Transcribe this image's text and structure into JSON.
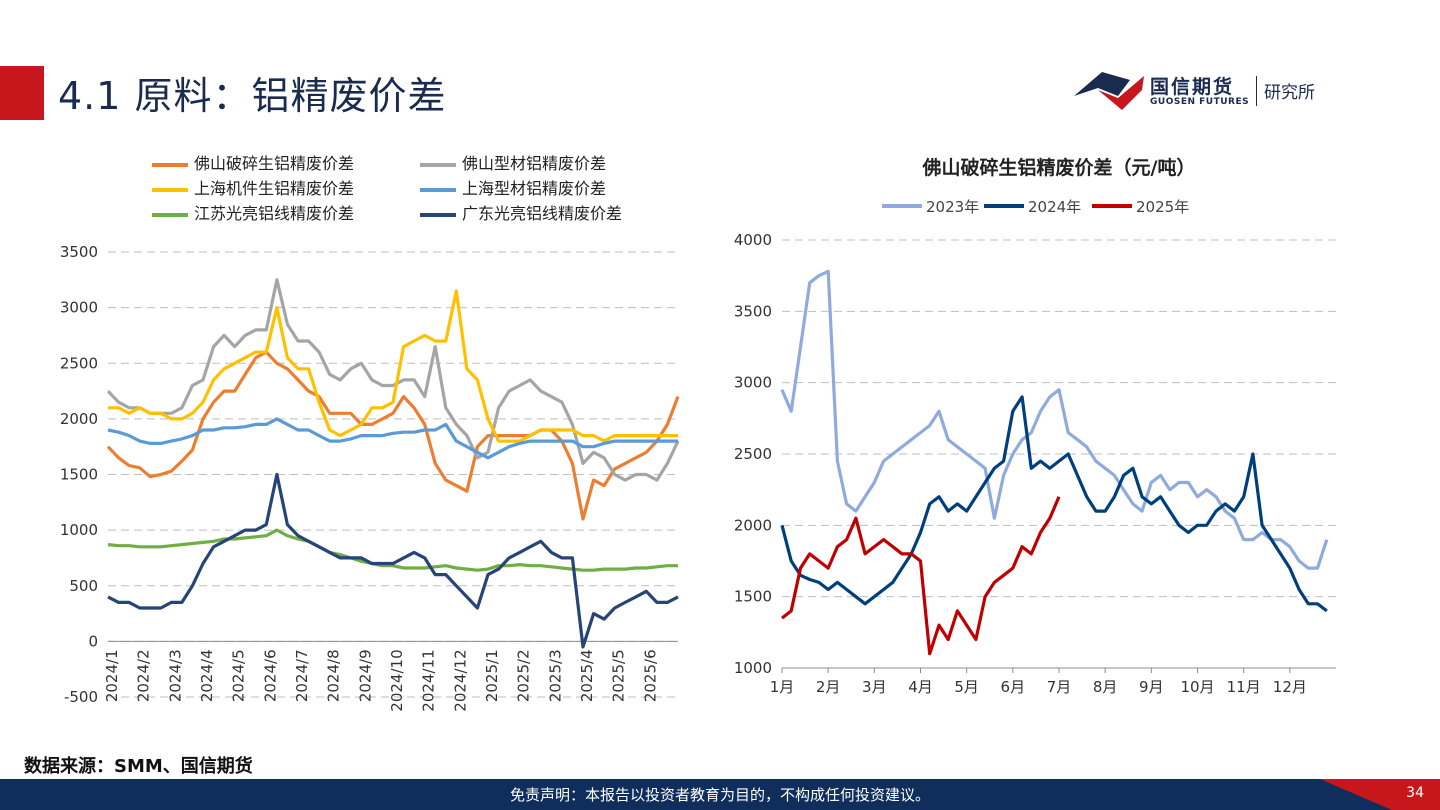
{
  "header": {
    "title": "4.1 原料：铝精废价差",
    "logo_name": "国信期货",
    "logo_en": "GUOSEN FUTURES",
    "logo_sub": "研究所"
  },
  "colors": {
    "brand_red": "#c8161d",
    "brand_navy": "#0f2e5c"
  },
  "chart_data": [
    {
      "type": "line",
      "title": "",
      "legend_placement": "top",
      "grid": true,
      "ylim": [
        -500,
        3500
      ],
      "yticks": [
        -500,
        0,
        500,
        1000,
        1500,
        2000,
        2500,
        3000,
        3500
      ],
      "xticks": [
        "2024/1",
        "2024/2",
        "2024/3",
        "2024/4",
        "2024/5",
        "2024/6",
        "2024/7",
        "2024/8",
        "2024/9",
        "2024/10",
        "2024/11",
        "2024/12",
        "2025/1",
        "2025/2",
        "2025/3",
        "2025/4",
        "2025/5",
        "2025/6"
      ],
      "series": [
        {
          "name": "佛山破碎生铝精废价差",
          "color": "#ed7d31",
          "values": [
            1750,
            1650,
            1580,
            1560,
            1480,
            1500,
            1530,
            1620,
            1720,
            2000,
            2150,
            2250,
            2250,
            2400,
            2550,
            2600,
            2500,
            2450,
            2350,
            2250,
            2200,
            2050,
            2050,
            2050,
            1950,
            1950,
            2000,
            2050,
            2200,
            2100,
            1950,
            1600,
            1450,
            1400,
            1350,
            1750,
            1850,
            1850,
            1850,
            1850,
            1850,
            1900,
            1900,
            1800,
            1600,
            1100,
            1450,
            1400,
            1550,
            1600,
            1650,
            1700,
            1800,
            1950,
            2200
          ]
        },
        {
          "name": "佛山型材铝精废价差",
          "color": "#a5a5a5",
          "values": [
            2250,
            2150,
            2100,
            2100,
            2050,
            2050,
            2050,
            2100,
            2300,
            2350,
            2650,
            2750,
            2650,
            2750,
            2800,
            2800,
            3250,
            2850,
            2700,
            2700,
            2600,
            2400,
            2350,
            2450,
            2500,
            2350,
            2300,
            2300,
            2350,
            2350,
            2200,
            2650,
            2100,
            1950,
            1850,
            1650,
            1700,
            2100,
            2250,
            2300,
            2350,
            2250,
            2200,
            2150,
            1950,
            1600,
            1700,
            1650,
            1500,
            1450,
            1500,
            1500,
            1450,
            1600,
            1800
          ]
        },
        {
          "name": "上海机件生铝精废价差",
          "color": "#ffc000",
          "values": [
            2100,
            2100,
            2050,
            2100,
            2050,
            2050,
            2000,
            2000,
            2050,
            2150,
            2350,
            2450,
            2500,
            2550,
            2600,
            2600,
            3000,
            2550,
            2450,
            2450,
            2150,
            1900,
            1850,
            1900,
            1950,
            2100,
            2100,
            2150,
            2650,
            2700,
            2750,
            2700,
            2700,
            3150,
            2450,
            2350,
            2000,
            1800,
            1800,
            1800,
            1850,
            1900,
            1900,
            1900,
            1900,
            1850,
            1850,
            1800,
            1850,
            1850,
            1850,
            1850,
            1850,
            1850,
            1850
          ]
        },
        {
          "name": "上海型材铝精废价差",
          "color": "#5b9bd5",
          "values": [
            1900,
            1880,
            1850,
            1800,
            1780,
            1780,
            1800,
            1820,
            1850,
            1900,
            1900,
            1920,
            1920,
            1930,
            1950,
            1950,
            2000,
            1950,
            1900,
            1900,
            1850,
            1800,
            1800,
            1820,
            1850,
            1850,
            1850,
            1870,
            1880,
            1880,
            1900,
            1900,
            1950,
            1800,
            1750,
            1700,
            1650,
            1700,
            1750,
            1780,
            1800,
            1800,
            1800,
            1800,
            1800,
            1750,
            1750,
            1780,
            1800,
            1800,
            1800,
            1800,
            1800,
            1800,
            1800
          ]
        },
        {
          "name": "江苏光亮铝线精废价差",
          "color": "#70ad47",
          "values": [
            870,
            860,
            860,
            850,
            850,
            850,
            860,
            870,
            880,
            890,
            900,
            920,
            920,
            930,
            940,
            950,
            1000,
            950,
            920,
            900,
            850,
            800,
            780,
            750,
            720,
            700,
            680,
            680,
            660,
            660,
            660,
            670,
            680,
            660,
            650,
            640,
            650,
            680,
            680,
            690,
            680,
            680,
            670,
            660,
            650,
            640,
            640,
            650,
            650,
            650,
            660,
            660,
            670,
            680,
            680
          ]
        },
        {
          "name": "广东光亮铝线精废价差",
          "color": "#264478",
          "values": [
            400,
            350,
            350,
            300,
            300,
            300,
            350,
            350,
            500,
            700,
            850,
            900,
            950,
            1000,
            1000,
            1050,
            1500,
            1050,
            950,
            900,
            850,
            800,
            750,
            750,
            750,
            700,
            700,
            700,
            750,
            800,
            750,
            600,
            600,
            500,
            400,
            300,
            600,
            650,
            750,
            800,
            850,
            900,
            800,
            750,
            750,
            -50,
            250,
            200,
            300,
            350,
            400,
            450,
            350,
            350,
            400
          ]
        }
      ]
    },
    {
      "type": "line",
      "title": "佛山破碎生铝精废价差（元/吨）",
      "legend_placement": "top",
      "grid": true,
      "ylim": [
        1000,
        4000
      ],
      "yticks": [
        1000,
        1500,
        2000,
        2500,
        3000,
        3500,
        4000
      ],
      "xticks": [
        "1月",
        "2月",
        "3月",
        "4月",
        "5月",
        "6月",
        "7月",
        "8月",
        "9月",
        "10月",
        "11月",
        "12月"
      ],
      "series": [
        {
          "name": "2023年",
          "color": "#8faadc",
          "x": [
            1,
            1.2,
            1.4,
            1.6,
            1.8,
            2.0,
            2.2,
            2.4,
            2.6,
            2.8,
            3.0,
            3.2,
            3.4,
            3.6,
            3.8,
            4.0,
            4.2,
            4.4,
            4.6,
            4.8,
            5.0,
            5.2,
            5.4,
            5.6,
            5.8,
            6.0,
            6.2,
            6.4,
            6.6,
            6.8,
            7.0,
            7.2,
            7.4,
            7.6,
            7.8,
            8.0,
            8.2,
            8.4,
            8.6,
            8.8,
            9.0,
            9.2,
            9.4,
            9.6,
            9.8,
            10.0,
            10.2,
            10.4,
            10.6,
            10.8,
            11.0,
            11.2,
            11.4,
            11.6,
            11.8,
            12.0,
            12.2,
            12.4,
            12.6,
            12.8
          ],
          "values": [
            2950,
            2800,
            3250,
            3700,
            3750,
            3780,
            2450,
            2150,
            2100,
            2200,
            2300,
            2450,
            2500,
            2550,
            2600,
            2650,
            2700,
            2800,
            2600,
            2550,
            2500,
            2450,
            2400,
            2050,
            2350,
            2500,
            2600,
            2650,
            2800,
            2900,
            2950,
            2650,
            2600,
            2550,
            2450,
            2400,
            2350,
            2250,
            2150,
            2100,
            2300,
            2350,
            2250,
            2300,
            2300,
            2200,
            2250,
            2200,
            2100,
            2050,
            1900,
            1900,
            1950,
            1900,
            1900,
            1850,
            1750,
            1700,
            1700,
            1900
          ]
        },
        {
          "name": "2024年",
          "color": "#003f7d",
          "x": [
            1,
            1.2,
            1.4,
            1.6,
            1.8,
            2.0,
            2.2,
            2.4,
            2.6,
            2.8,
            3.0,
            3.2,
            3.4,
            3.6,
            3.8,
            4.0,
            4.2,
            4.4,
            4.6,
            4.8,
            5.0,
            5.2,
            5.4,
            5.6,
            5.8,
            6.0,
            6.2,
            6.4,
            6.6,
            6.8,
            7.0,
            7.2,
            7.4,
            7.6,
            7.8,
            8.0,
            8.2,
            8.4,
            8.6,
            8.8,
            9.0,
            9.2,
            9.4,
            9.6,
            9.8,
            10.0,
            10.2,
            10.4,
            10.6,
            10.8,
            11.0,
            11.2,
            11.4,
            11.6,
            11.8,
            12.0,
            12.2,
            12.4,
            12.6,
            12.8
          ],
          "values": [
            2000,
            1750,
            1650,
            1620,
            1600,
            1550,
            1600,
            1550,
            1500,
            1450,
            1500,
            1550,
            1600,
            1700,
            1800,
            1950,
            2150,
            2200,
            2100,
            2150,
            2100,
            2200,
            2300,
            2400,
            2450,
            2800,
            2900,
            2400,
            2450,
            2400,
            2450,
            2500,
            2350,
            2200,
            2100,
            2100,
            2200,
            2350,
            2400,
            2200,
            2150,
            2200,
            2100,
            2000,
            1950,
            2000,
            2000,
            2100,
            2150,
            2100,
            2200,
            2500,
            2000,
            1900,
            1800,
            1700,
            1550,
            1450,
            1450,
            1400
          ]
        },
        {
          "name": "2025年",
          "color": "#c00000",
          "x": [
            1,
            1.2,
            1.4,
            1.6,
            1.8,
            2.0,
            2.2,
            2.4,
            2.6,
            2.8,
            3.0,
            3.2,
            3.4,
            3.6,
            3.8,
            4.0,
            4.2,
            4.4,
            4.6,
            4.8,
            5.0,
            5.2,
            5.4,
            5.6,
            5.8,
            6.0,
            6.2,
            6.4,
            6.6,
            6.8,
            7.0
          ],
          "values": [
            1350,
            1400,
            1700,
            1800,
            1750,
            1700,
            1850,
            1900,
            2050,
            1800,
            1850,
            1900,
            1850,
            1800,
            1800,
            1750,
            1100,
            1300,
            1200,
            1400,
            1300,
            1200,
            1500,
            1600,
            1650,
            1700,
            1850,
            1800,
            1950,
            2050,
            2200
          ]
        }
      ]
    }
  ],
  "source": "数据来源：SMM、国信期货",
  "footer": {
    "disclaimer": "免责声明：本报告以投资者教育为目的，不构成任何投资建议。",
    "page": "34"
  }
}
